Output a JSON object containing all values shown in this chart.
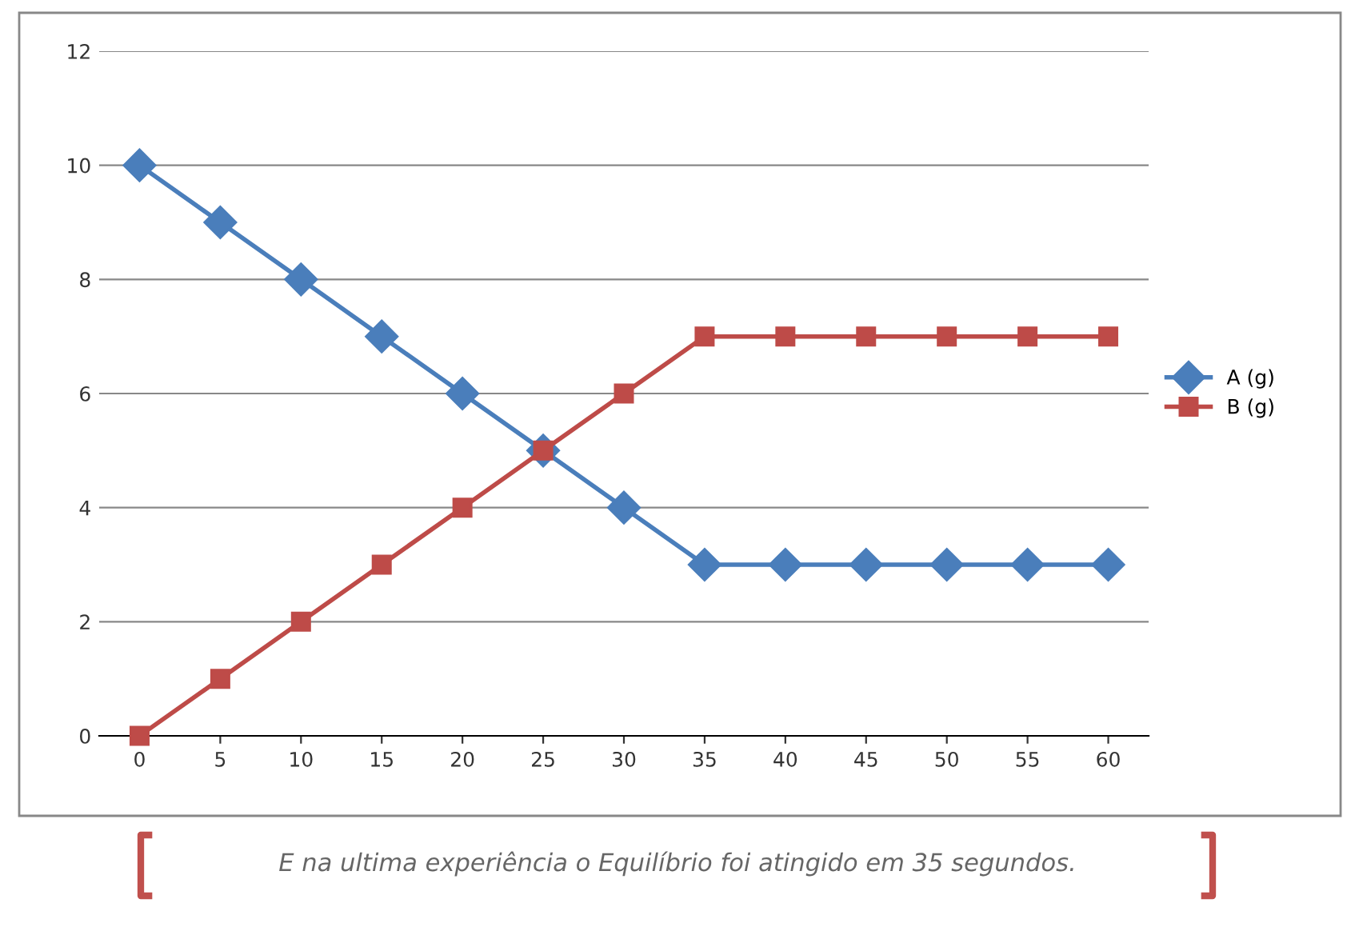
{
  "chart_data": {
    "type": "line",
    "categories": [
      "0",
      "5",
      "10",
      "15",
      "20",
      "25",
      "30",
      "35",
      "40",
      "45",
      "50",
      "55",
      "60"
    ],
    "series": [
      {
        "name": "A (g)",
        "color": "#4a7ebb",
        "marker": "diamond",
        "values": [
          10,
          9,
          8,
          7,
          6,
          5,
          4,
          3,
          3,
          3,
          3,
          3,
          3
        ]
      },
      {
        "name": "B (g)",
        "color": "#be4b48",
        "marker": "square",
        "values": [
          0,
          1,
          2,
          3,
          4,
          5,
          6,
          7,
          7,
          7,
          7,
          7,
          7
        ]
      }
    ],
    "ylim": [
      0,
      12
    ],
    "yticks": [
      0,
      2,
      4,
      6,
      8,
      10,
      12
    ],
    "grid": "y",
    "legend": "right",
    "annotations": [
      "E na ultima experiência o Equilíbrio foi atingido em 35 segundos."
    ]
  }
}
